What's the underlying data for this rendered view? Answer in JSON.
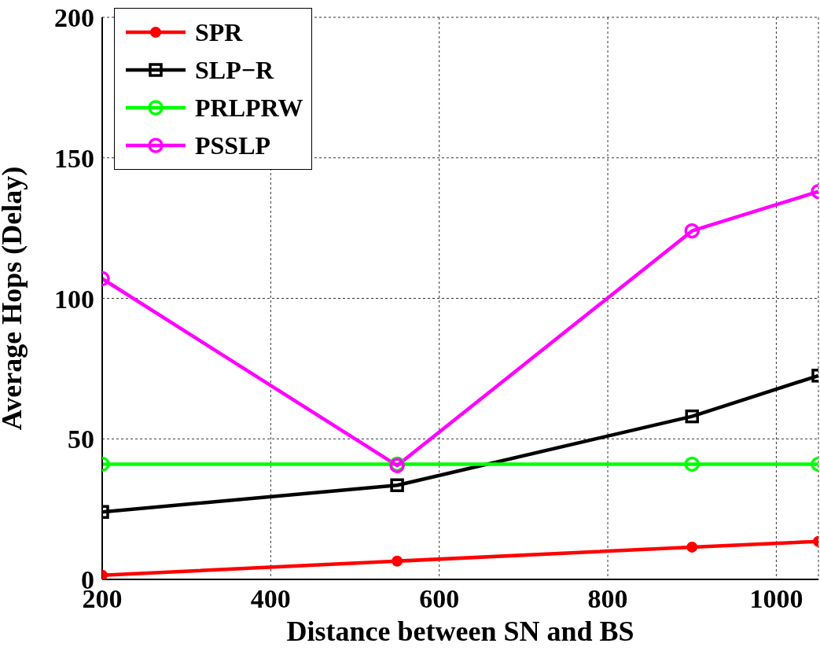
{
  "chart_data": {
    "type": "line",
    "xlabel": "Distance between SN and BS",
    "ylabel": "Average Hops (Delay)",
    "x": [
      200,
      550,
      900,
      1050
    ],
    "series": [
      {
        "name": "SPR",
        "color": "#ff0000",
        "marker": "filled-circle",
        "values": [
          1.5,
          6.5,
          11.5,
          13.5
        ]
      },
      {
        "name": "SLP−R",
        "color": "#000000",
        "marker": "square",
        "values": [
          24,
          33.5,
          58,
          72.5
        ]
      },
      {
        "name": "PRLPRW",
        "color": "#00ff00",
        "marker": "circle",
        "values": [
          41,
          41,
          41,
          41
        ]
      },
      {
        "name": "PSSLP",
        "color": "#ff00ff",
        "marker": "circle",
        "values": [
          107,
          40.5,
          124,
          138
        ]
      }
    ],
    "xlim": [
      200,
      1050
    ],
    "xticks": [
      200,
      400,
      600,
      800,
      1000
    ],
    "ylim": [
      0,
      200
    ],
    "yticks": [
      0,
      50,
      100,
      150,
      200
    ],
    "grid": true,
    "legend": "top left",
    "line_style": "solid"
  }
}
